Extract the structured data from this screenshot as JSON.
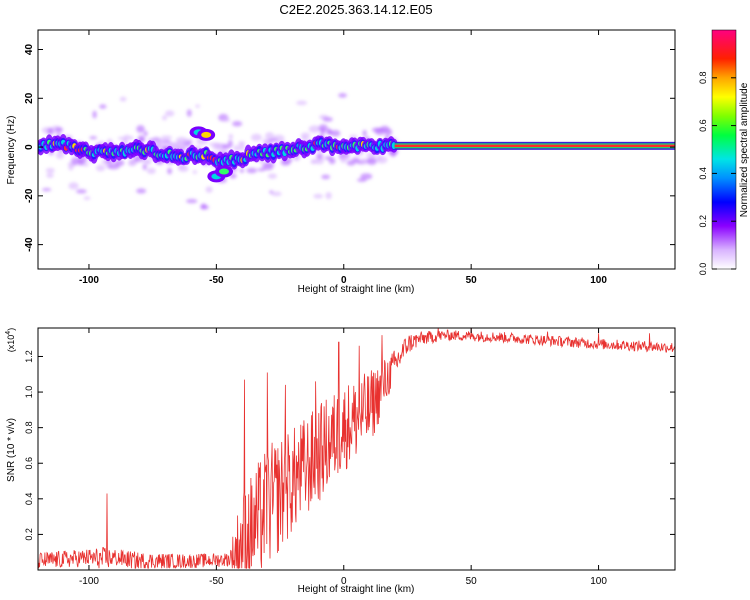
{
  "title": "C2E2.2025.363.14.12.E05",
  "colors": {
    "snr_line": "#e8312f",
    "axis": "#000000",
    "line_band_outer": "#3b1fd6",
    "line_band_inner": "#22d46e",
    "line_band_core": "#ff2a2a"
  },
  "chart_data": [
    {
      "type": "heatmap",
      "name": "spectrogram",
      "xlabel": "Height of straight line (km)",
      "ylabel": "Frequency (Hz)",
      "xlim": [
        -120,
        130
      ],
      "ylim": [
        -50,
        48
      ],
      "xticks": [
        -100,
        -50,
        0,
        50,
        100
      ],
      "xtick_labels": [
        "-100",
        "-50",
        "0",
        "50",
        "100"
      ],
      "yticks": [
        -40,
        -20,
        0,
        20,
        40
      ],
      "ytick_labels": [
        "-40",
        "-20",
        "0",
        "20",
        "40"
      ],
      "ridge": [
        [
          -120,
          0.5
        ],
        [
          -110,
          1
        ],
        [
          -100,
          -2
        ],
        [
          -90,
          -2
        ],
        [
          -80,
          -1
        ],
        [
          -70,
          -3
        ],
        [
          -62,
          -4
        ],
        [
          -55,
          -3
        ],
        [
          -48,
          -6
        ],
        [
          -42,
          -5
        ],
        [
          -35,
          -3
        ],
        [
          -28,
          -2
        ],
        [
          -20,
          -1
        ],
        [
          -10,
          1
        ],
        [
          0,
          0.5
        ],
        [
          10,
          0.5
        ],
        [
          20,
          0.5
        ],
        [
          130,
          0.5
        ]
      ],
      "clear_line": {
        "from_x": 20,
        "to_x": 130,
        "freq": 0.5
      },
      "colorbar": {
        "label": "Normalized spectral amplitude",
        "range": [
          0,
          1
        ],
        "ticks": [
          0.0,
          0.2,
          0.4,
          0.6,
          0.8
        ],
        "tick_labels": [
          "0.0",
          "0.2",
          "0.4",
          "0.6",
          "0.8"
        ]
      }
    },
    {
      "type": "line",
      "name": "snr",
      "xlabel": "Height of straight line (km)",
      "ylabel": "SNR (10 * v/v)",
      "yscale_label": "(x10",
      "yscale_exponent": "4",
      "xlim": [
        -120,
        130
      ],
      "ylim": [
        0,
        13600
      ],
      "xticks": [
        -100,
        -50,
        0,
        50,
        100
      ],
      "xtick_labels": [
        "-100",
        "-50",
        "0",
        "50",
        "100"
      ],
      "yticks": [
        2000,
        4000,
        6000,
        8000,
        10000,
        12000
      ],
      "ytick_labels": [
        "0.2",
        "0.4",
        "0.6",
        "0.8",
        "1.0",
        "1.2"
      ],
      "envelope": {
        "x": [
          -120,
          -100,
          -95,
          -90,
          -80,
          -60,
          -45,
          -40,
          -30,
          -20,
          -10,
          0,
          10,
          20,
          25,
          30,
          40,
          60,
          80,
          100,
          130
        ],
        "base": [
          500,
          700,
          600,
          700,
          500,
          500,
          600,
          1500,
          3500,
          5000,
          6500,
          8000,
          9000,
          11500,
          12700,
          13000,
          13200,
          13100,
          12900,
          12700,
          12500
        ],
        "amp": [
          500,
          500,
          700,
          500,
          500,
          400,
          400,
          3000,
          3500,
          3000,
          2800,
          2500,
          2200,
          900,
          600,
          400,
          300,
          300,
          300,
          300,
          300
        ],
        "spikes": [
          [
            -93,
            4300
          ],
          [
            -39,
            10700
          ],
          [
            -30,
            11100
          ],
          [
            -23,
            10400
          ],
          [
            -11,
            10600
          ],
          [
            -2,
            12800
          ],
          [
            6,
            12600
          ],
          [
            15,
            13200
          ],
          [
            37,
            13700
          ],
          [
            50,
            13600
          ],
          [
            80,
            13400
          ],
          [
            100,
            13300
          ],
          [
            120,
            13300
          ]
        ]
      }
    }
  ]
}
